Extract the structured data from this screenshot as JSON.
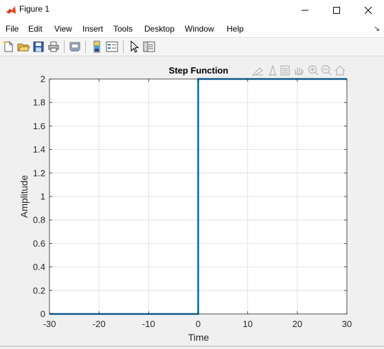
{
  "window": {
    "title": "Figure 1",
    "controls": [
      "minimize",
      "maximize",
      "close"
    ]
  },
  "menu": {
    "items": [
      "File",
      "Edit",
      "View",
      "Insert",
      "Tools",
      "Desktop",
      "Window",
      "Help"
    ]
  },
  "toolbar": {
    "icons": [
      "new-figure-icon",
      "open-file-icon",
      "save-icon",
      "print-icon",
      "print-preview-icon",
      "colorbar-icon",
      "legend-icon",
      "pointer-icon",
      "property-inspector-icon"
    ]
  },
  "axes_toolbar": {
    "icons": [
      "brush-icon",
      "data-tips-icon",
      "restore-view-icon",
      "pan-icon",
      "zoom-in-icon",
      "zoom-out-icon",
      "home-icon"
    ]
  },
  "colors": {
    "line": "#0072bd",
    "grid": "#dcdcdc",
    "axes_bg": "#ffffff",
    "figure_bg": "#f0f0f0"
  },
  "chart_data": {
    "type": "line",
    "title": "Step Function",
    "xlabel": "Time",
    "ylabel": "Amplitude",
    "xlim": [
      -30,
      30
    ],
    "ylim": [
      0,
      2
    ],
    "xticks": [
      "-30",
      "-20",
      "-10",
      "0",
      "10",
      "20",
      "30"
    ],
    "yticks": [
      "0",
      "0.2",
      "0.4",
      "0.6",
      "0.8",
      "1",
      "1.2",
      "1.4",
      "1.6",
      "1.8",
      "2"
    ],
    "grid": true,
    "series": [
      {
        "x": [
          -30,
          0,
          0,
          30
        ],
        "y": [
          0,
          0,
          2,
          2
        ]
      }
    ]
  }
}
